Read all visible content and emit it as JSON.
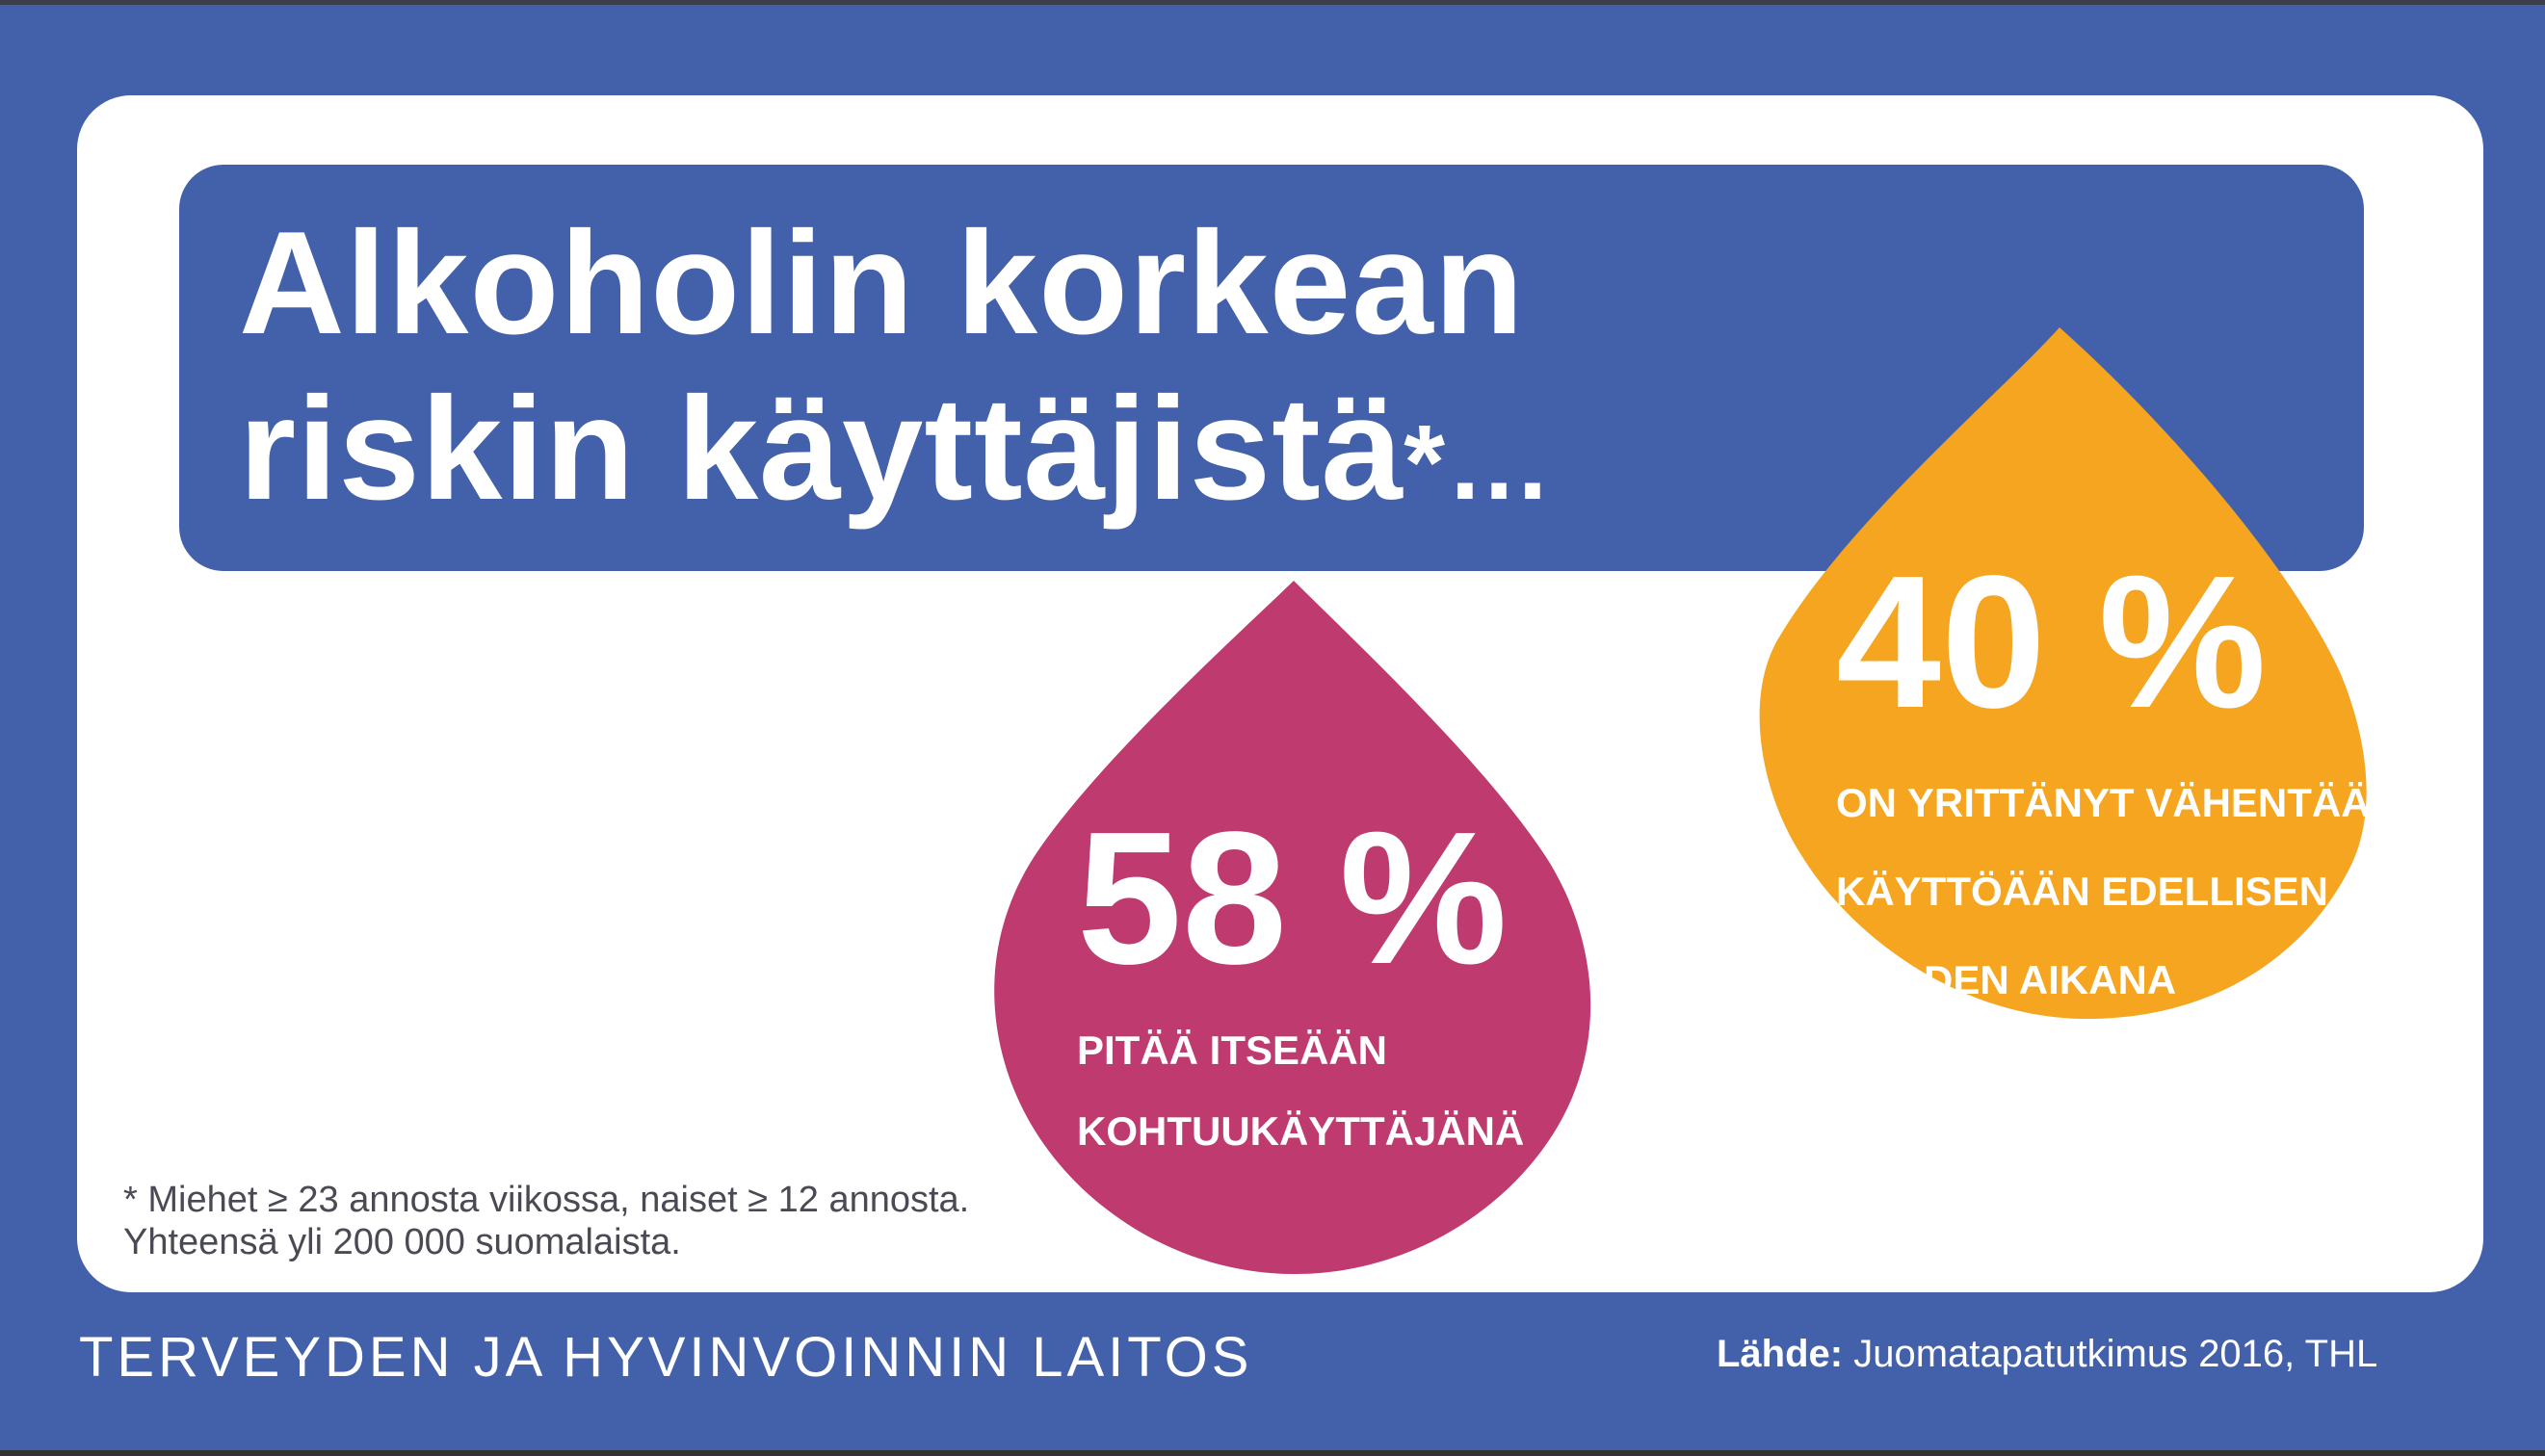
{
  "headline": {
    "line1": "Alkoholin korkean",
    "line2": "riskin käyttäjistä",
    "marker": "*…"
  },
  "stats": [
    {
      "value": "58 %",
      "label_lines": [
        "PITÄÄ ITSEÄÄN",
        "KOHTUUKÄYTTÄJÄNÄ"
      ],
      "color": "#bf3a6e"
    },
    {
      "value": "40 %",
      "label_lines": [
        "ON YRITTÄNYT VÄHENTÄÄ",
        "KÄYTTÖÄÄN EDELLISEN",
        "VUODEN AIKANA"
      ],
      "color": "#f5a51f"
    }
  ],
  "footnote": {
    "line1": "* Miehet ≥ 23 annosta viikossa, naiset ≥ 12 annosta.",
    "line2": "Yhteensä yli 200 000 suomalaista."
  },
  "organization": "TERVEYDEN JA HYVINVOINNIN LAITOS",
  "source": {
    "label": "Lähde:",
    "text": " Juomatapatutkimus 2016, THL"
  },
  "colors": {
    "background_blue": "#4361aa",
    "card": "#ffffff",
    "pink": "#bf3a6e",
    "orange": "#f5a51f"
  }
}
